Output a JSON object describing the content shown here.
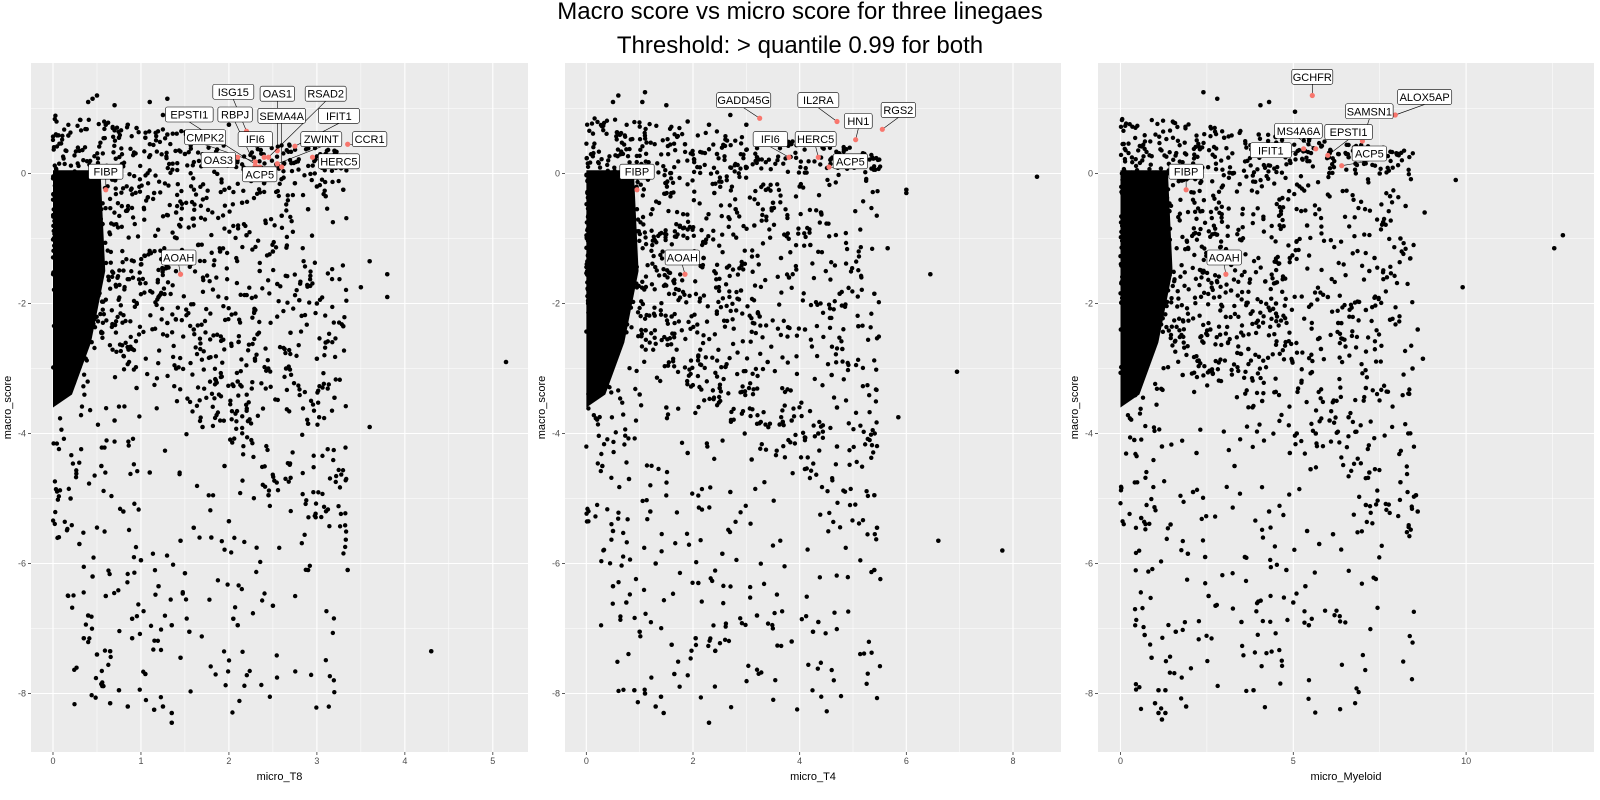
{
  "title": "Macro score vs micro score for three linegaes",
  "subtitle": "Threshold: > quantile 0.99 for both",
  "colors": {
    "panel_bg": "#ebebeb",
    "grid": "#ffffff",
    "point": "#000000",
    "highlight": "#f8766d"
  },
  "chart_data": [
    {
      "type": "scatter",
      "xlabel": "micro_T8",
      "ylabel": "macro_score",
      "xlim": [
        -0.25,
        5.4
      ],
      "ylim": [
        -8.9,
        1.7
      ],
      "xticks": [
        "0",
        "1",
        "2",
        "3",
        "4",
        "5"
      ],
      "yticks": [
        "0",
        "-2",
        "-4",
        "-6",
        "-8"
      ],
      "grid": true,
      "points": [
        [
          0.5,
          1.2
        ],
        [
          0.45,
          1.15
        ],
        [
          0.4,
          1.1
        ],
        [
          0.7,
          1.05
        ],
        [
          1.1,
          1.1
        ],
        [
          1.3,
          1.15
        ],
        [
          1.25,
          0.9
        ],
        [
          1.6,
          0.85
        ],
        [
          2.0,
          0.75
        ],
        [
          2.4,
          0.6
        ],
        [
          3.2,
          0.35
        ],
        [
          3.1,
          0.3
        ],
        [
          3.4,
          0.25
        ],
        [
          3.3,
          -0.25
        ],
        [
          3.1,
          -0.35
        ],
        [
          3.6,
          -1.35
        ],
        [
          3.8,
          -1.55
        ],
        [
          3.8,
          -1.9
        ],
        [
          3.5,
          -1.75
        ],
        [
          3.0,
          -2.0
        ],
        [
          3.1,
          -2.6
        ],
        [
          3.0,
          -2.85
        ],
        [
          3.3,
          -2.35
        ],
        [
          3.2,
          -3.45
        ],
        [
          2.9,
          -3.85
        ],
        [
          3.6,
          -3.9
        ],
        [
          5.15,
          -2.9
        ],
        [
          2.9,
          -6.1
        ],
        [
          3.35,
          -6.1
        ],
        [
          4.3,
          -7.35
        ],
        [
          2.5,
          -6.65
        ],
        [
          2.05,
          -6.85
        ],
        [
          2.1,
          -6.95
        ],
        [
          2.0,
          -5.35
        ],
        [
          1.95,
          -4.5
        ],
        [
          2.45,
          -4.95
        ],
        [
          1.8,
          -5.6
        ],
        [
          1.5,
          -6.15
        ],
        [
          1.2,
          -6.35
        ],
        [
          1.35,
          -6.95
        ],
        [
          1.55,
          -7.05
        ],
        [
          1.45,
          -7.45
        ],
        [
          1.35,
          -8.3
        ],
        [
          1.35,
          -8.45
        ],
        [
          1.25,
          -8.2
        ],
        [
          1.15,
          -8.25
        ],
        [
          0.85,
          -8.2
        ],
        [
          0.65,
          -8.15
        ],
        [
          0.75,
          -7.95
        ],
        [
          0.65,
          -7.35
        ],
        [
          0.5,
          -7.4
        ],
        [
          0.35,
          -7.15
        ],
        [
          0.9,
          -7.15
        ],
        [
          1.05,
          -7.7
        ],
        [
          0.9,
          -6.85
        ],
        [
          0.6,
          -6.5
        ],
        [
          0.4,
          -6.8
        ],
        [
          1.0,
          -5.95
        ],
        [
          1.45,
          -5.65
        ],
        [
          1.6,
          -5.45
        ],
        [
          2.65,
          -3.0
        ],
        [
          2.7,
          -2.45
        ],
        [
          2.8,
          -1.95
        ],
        [
          2.35,
          -1.5
        ],
        [
          2.55,
          -1.7
        ],
        [
          2.2,
          -0.95
        ],
        [
          2.6,
          -0.65
        ],
        [
          2.9,
          -0.55
        ],
        [
          2.15,
          -0.45
        ],
        [
          1.95,
          -0.25
        ],
        [
          2.4,
          -0.15
        ],
        [
          2.75,
          -0.15
        ],
        [
          3.0,
          -0.2
        ],
        [
          1.8,
          0.2
        ],
        [
          1.5,
          0.3
        ],
        [
          1.7,
          0.5
        ],
        [
          1.9,
          -1.2
        ],
        [
          1.3,
          0.6
        ],
        [
          1.05,
          0.55
        ],
        [
          0.95,
          0.7
        ],
        [
          0.85,
          0.75
        ],
        [
          0.75,
          0.55
        ],
        [
          0.6,
          0.75
        ],
        [
          0.3,
          0.35
        ],
        [
          1.2,
          -1.9
        ],
        [
          1.6,
          -2.4
        ],
        [
          1.4,
          -3.0
        ],
        [
          2.1,
          -3.2
        ],
        [
          1.7,
          -3.9
        ],
        [
          1.1,
          -4.6
        ],
        [
          0.8,
          -5.2
        ],
        [
          2.3,
          -2.1
        ],
        [
          2.5,
          -1.2
        ],
        [
          1.65,
          -1.1
        ],
        [
          1.15,
          -0.3
        ],
        [
          1.4,
          -0.6
        ],
        [
          0.9,
          -2.7
        ],
        [
          0.7,
          -3.8
        ],
        [
          0.55,
          -4.5
        ],
        [
          0.3,
          -5.7
        ],
        [
          0.2,
          -5.0
        ],
        [
          0.45,
          -6.2
        ],
        [
          0.95,
          -3.3
        ],
        [
          1.3,
          -2.3
        ],
        [
          1.0,
          -1.4
        ]
      ],
      "highlights": [
        {
          "name": "ISG15",
          "x": 2.2,
          "y": 0.65,
          "lx": 2.05,
          "ly": 1.25
        },
        {
          "name": "OAS1",
          "x": 2.55,
          "y": 0.35,
          "lx": 2.55,
          "ly": 1.22
        },
        {
          "name": "RSAD2",
          "x": 2.45,
          "y": 0.25,
          "lx": 3.1,
          "ly": 1.22
        },
        {
          "name": "EPSTI1",
          "x": 2.35,
          "y": 0.1,
          "lx": 1.55,
          "ly": 0.9
        },
        {
          "name": "RBPJ",
          "x": 2.3,
          "y": 0.12,
          "lx": 2.07,
          "ly": 0.9
        },
        {
          "name": "SEMA4A",
          "x": 2.6,
          "y": 0.1,
          "lx": 2.6,
          "ly": 0.88
        },
        {
          "name": "IFIT1",
          "x": 2.75,
          "y": 0.42,
          "lx": 3.25,
          "ly": 0.88
        },
        {
          "name": "CMPK2",
          "x": 2.3,
          "y": 0.18,
          "lx": 1.73,
          "ly": 0.55
        },
        {
          "name": "IFI6",
          "x": 2.4,
          "y": 0.25,
          "lx": 2.3,
          "ly": 0.52
        },
        {
          "name": "ZWINT",
          "x": 2.55,
          "y": 0.15,
          "lx": 3.05,
          "ly": 0.52
        },
        {
          "name": "CCR1",
          "x": 3.35,
          "y": 0.45,
          "lx": 3.6,
          "ly": 0.52
        },
        {
          "name": "OAS3",
          "x": 2.1,
          "y": 0.25,
          "lx": 1.88,
          "ly": 0.2
        },
        {
          "name": "HERC5",
          "x": 2.95,
          "y": 0.25,
          "lx": 3.25,
          "ly": 0.18
        },
        {
          "name": "ACP5",
          "x": 2.5,
          "y": 0.05,
          "lx": 2.35,
          "ly": -0.02
        },
        {
          "name": "FIBP",
          "x": 0.6,
          "y": -0.25,
          "lx": 0.6,
          "ly": 0.02
        },
        {
          "name": "AOAH",
          "x": 1.45,
          "y": -1.55,
          "lx": 1.43,
          "ly": -1.3
        }
      ]
    },
    {
      "type": "scatter",
      "xlabel": "micro_T4",
      "ylabel": "macro_score",
      "xlim": [
        -0.4,
        8.9
      ],
      "ylim": [
        -8.9,
        1.7
      ],
      "xticks": [
        "0",
        "2",
        "4",
        "6",
        "8"
      ],
      "yticks": [
        "0",
        "-2",
        "-4",
        "-6",
        "-8"
      ],
      "grid": true,
      "points": [
        [
          0.5,
          1.1
        ],
        [
          0.6,
          1.2
        ],
        [
          1.1,
          1.25
        ],
        [
          1.05,
          1.1
        ],
        [
          1.5,
          1.05
        ],
        [
          1.9,
          0.8
        ],
        [
          2.3,
          0.75
        ],
        [
          2.7,
          0.9
        ],
        [
          3.0,
          0.75
        ],
        [
          8.45,
          -0.05
        ],
        [
          6.0,
          -0.25
        ],
        [
          6.0,
          -0.3
        ],
        [
          5.65,
          -1.15
        ],
        [
          5.4,
          -1.85
        ],
        [
          6.45,
          -1.55
        ],
        [
          4.75,
          -1.85
        ],
        [
          5.1,
          -2.35
        ],
        [
          5.85,
          -3.75
        ],
        [
          6.95,
          -3.05
        ],
        [
          4.8,
          -2.7
        ],
        [
          4.1,
          -2.4
        ],
        [
          4.6,
          -3.1
        ],
        [
          4.7,
          -3.6
        ],
        [
          3.85,
          -3.8
        ],
        [
          4.35,
          -4.0
        ],
        [
          4.7,
          -4.2
        ],
        [
          5.4,
          -4.95
        ],
        [
          5.45,
          -5.45
        ],
        [
          5.4,
          -6.1
        ],
        [
          6.6,
          -5.65
        ],
        [
          7.8,
          -5.8
        ],
        [
          3.85,
          -7.2
        ],
        [
          4.35,
          -6.9
        ],
        [
          4.25,
          -7.05
        ],
        [
          3.2,
          -6.8
        ],
        [
          2.1,
          -6.3
        ],
        [
          2.05,
          -7.15
        ],
        [
          1.6,
          -7.25
        ],
        [
          1.65,
          -7.7
        ],
        [
          1.4,
          -8.05
        ],
        [
          1.3,
          -8.2
        ],
        [
          1.45,
          -8.3
        ],
        [
          1.1,
          -8.0
        ],
        [
          0.9,
          -7.95
        ],
        [
          2.3,
          -8.45
        ],
        [
          1.0,
          -7.05
        ],
        [
          0.75,
          -6.6
        ],
        [
          0.5,
          -6.35
        ],
        [
          2.55,
          -5.85
        ],
        [
          2.7,
          -4.9
        ],
        [
          3.1,
          -4.4
        ],
        [
          2.5,
          -3.3
        ],
        [
          3.4,
          -2.9
        ],
        [
          3.25,
          -2.2
        ],
        [
          3.8,
          -1.6
        ],
        [
          3.65,
          -1.3
        ],
        [
          3.15,
          -0.8
        ],
        [
          2.8,
          -0.55
        ],
        [
          2.4,
          -0.3
        ],
        [
          3.5,
          -0.45
        ],
        [
          4.0,
          -0.2
        ],
        [
          4.4,
          -0.6
        ],
        [
          4.2,
          -1.1
        ],
        [
          1.85,
          0.45
        ],
        [
          2.45,
          0.3
        ],
        [
          3.2,
          0.25
        ],
        [
          2.1,
          -2.8
        ],
        [
          1.5,
          -3.6
        ],
        [
          1.9,
          -4.3
        ],
        [
          1.2,
          -5.2
        ],
        [
          0.8,
          -4.7
        ],
        [
          2.9,
          -1.8
        ],
        [
          2.2,
          -1.3
        ],
        [
          1.6,
          -2.2
        ],
        [
          1.0,
          -3.4
        ],
        [
          0.5,
          -5.5
        ],
        [
          0.3,
          -4.5
        ],
        [
          1.3,
          -6.0
        ]
      ],
      "highlights": [
        {
          "name": "GADD45G",
          "x": 3.25,
          "y": 0.85,
          "lx": 2.95,
          "ly": 1.12
        },
        {
          "name": "IL2RA",
          "x": 4.7,
          "y": 0.8,
          "lx": 4.35,
          "ly": 1.12
        },
        {
          "name": "RGS2",
          "x": 5.55,
          "y": 0.68,
          "lx": 5.85,
          "ly": 0.97
        },
        {
          "name": "HN1",
          "x": 5.05,
          "y": 0.52,
          "lx": 5.1,
          "ly": 0.8
        },
        {
          "name": "IFI6",
          "x": 3.8,
          "y": 0.25,
          "lx": 3.45,
          "ly": 0.52
        },
        {
          "name": "HERC5",
          "x": 4.35,
          "y": 0.25,
          "lx": 4.3,
          "ly": 0.52
        },
        {
          "name": "ACP5",
          "x": 4.55,
          "y": 0.1,
          "lx": 4.95,
          "ly": 0.18
        },
        {
          "name": "FIBP",
          "x": 0.95,
          "y": -0.25,
          "lx": 0.95,
          "ly": 0.02
        },
        {
          "name": "AOAH",
          "x": 1.85,
          "y": -1.55,
          "lx": 1.8,
          "ly": -1.3
        }
      ]
    },
    {
      "type": "scatter",
      "xlabel": "micro_Myeloid",
      "ylabel": "macro_score",
      "xlim": [
        -0.65,
        13.7
      ],
      "ylim": [
        -8.9,
        1.7
      ],
      "xticks": [
        "0",
        "5",
        "10"
      ],
      "yticks": [
        "0",
        "-2",
        "-4",
        "-6",
        "-8"
      ],
      "grid": true,
      "points": [
        [
          2.4,
          1.25
        ],
        [
          2.8,
          1.15
        ],
        [
          4.3,
          1.1
        ],
        [
          4.05,
          1.05
        ],
        [
          5.05,
          0.95
        ],
        [
          3.0,
          0.55
        ],
        [
          4.0,
          0.6
        ],
        [
          6.3,
          0.3
        ],
        [
          6.6,
          0.25
        ],
        [
          6.8,
          0.15
        ],
        [
          7.5,
          0.0
        ],
        [
          9.7,
          -0.1
        ],
        [
          7.8,
          -0.35
        ],
        [
          8.25,
          -0.5
        ],
        [
          8.8,
          -0.6
        ],
        [
          7.6,
          -0.75
        ],
        [
          8.1,
          -1.0
        ],
        [
          7.35,
          -1.3
        ],
        [
          9.9,
          -1.75
        ],
        [
          12.8,
          -0.95
        ],
        [
          12.55,
          -1.15
        ],
        [
          7.2,
          -1.5
        ],
        [
          7.1,
          -2.1
        ],
        [
          6.3,
          -2.3
        ],
        [
          7.8,
          -2.25
        ],
        [
          8.6,
          -2.4
        ],
        [
          8.75,
          -2.85
        ],
        [
          8.45,
          -3.0
        ],
        [
          7.1,
          -3.3
        ],
        [
          6.6,
          -3.75
        ],
        [
          6.05,
          -3.8
        ],
        [
          5.65,
          -4.0
        ],
        [
          5.1,
          -4.0
        ],
        [
          4.9,
          -4.3
        ],
        [
          5.5,
          -4.55
        ],
        [
          7.2,
          -4.6
        ],
        [
          8.1,
          -4.75
        ],
        [
          8.55,
          -4.95
        ],
        [
          8.6,
          -5.2
        ],
        [
          7.1,
          -5.1
        ],
        [
          6.15,
          -5.55
        ],
        [
          5.75,
          -5.7
        ],
        [
          5.4,
          -5.5
        ],
        [
          5.35,
          -6.35
        ],
        [
          5.0,
          -6.6
        ],
        [
          5.45,
          -6.95
        ],
        [
          4.8,
          -6.1
        ],
        [
          3.85,
          -7.95
        ],
        [
          3.5,
          -6.9
        ],
        [
          2.55,
          -6.5
        ],
        [
          2.75,
          -6.65
        ],
        [
          2.45,
          -5.9
        ],
        [
          1.9,
          -8.2
        ],
        [
          1.3,
          -7.95
        ],
        [
          1.3,
          -8.3
        ],
        [
          1.1,
          -8.3
        ],
        [
          1.2,
          -8.4
        ],
        [
          1.0,
          -8.15
        ],
        [
          1.1,
          -7.95
        ],
        [
          0.9,
          -7.45
        ],
        [
          0.7,
          -7.1
        ],
        [
          1.6,
          -7.05
        ],
        [
          1.95,
          -5.85
        ],
        [
          1.45,
          -5.4
        ],
        [
          2.1,
          -4.9
        ],
        [
          3.3,
          -4.5
        ],
        [
          4.1,
          -3.5
        ],
        [
          3.7,
          -2.7
        ],
        [
          4.5,
          -2.0
        ],
        [
          4.9,
          -1.3
        ],
        [
          5.4,
          -0.8
        ],
        [
          4.6,
          -0.4
        ],
        [
          3.2,
          -1.8
        ],
        [
          2.6,
          -2.4
        ],
        [
          1.8,
          -3.1
        ],
        [
          1.2,
          -4.2
        ],
        [
          0.6,
          -5.3
        ],
        [
          0.4,
          -4.1
        ],
        [
          6.0,
          -1.9
        ],
        [
          5.8,
          -2.7
        ],
        [
          4.3,
          -5.2
        ],
        [
          3.6,
          -5.9
        ],
        [
          2.2,
          -4.3
        ]
      ],
      "highlights": [
        {
          "name": "GCHFR",
          "x": 5.55,
          "y": 1.2,
          "lx": 5.55,
          "ly": 1.48
        },
        {
          "name": "ALOX5AP",
          "x": 7.95,
          "y": 0.9,
          "lx": 8.8,
          "ly": 1.17
        },
        {
          "name": "SAMSN1",
          "x": 7.0,
          "y": 0.5,
          "lx": 7.2,
          "ly": 0.95
        },
        {
          "name": "MS4A6A",
          "x": 5.65,
          "y": 0.38,
          "lx": 5.15,
          "ly": 0.65
        },
        {
          "name": "EPSTI1",
          "x": 6.0,
          "y": 0.28,
          "lx": 6.6,
          "ly": 0.63
        },
        {
          "name": "IFIT1",
          "x": 5.3,
          "y": 0.38,
          "lx": 4.35,
          "ly": 0.35
        },
        {
          "name": "ACP5",
          "x": 6.4,
          "y": 0.12,
          "lx": 7.2,
          "ly": 0.3
        },
        {
          "name": "FIBP",
          "x": 1.9,
          "y": -0.25,
          "lx": 1.9,
          "ly": 0.02
        },
        {
          "name": "AOAH",
          "x": 3.05,
          "y": -1.55,
          "lx": 3.0,
          "ly": -1.3
        }
      ]
    }
  ]
}
